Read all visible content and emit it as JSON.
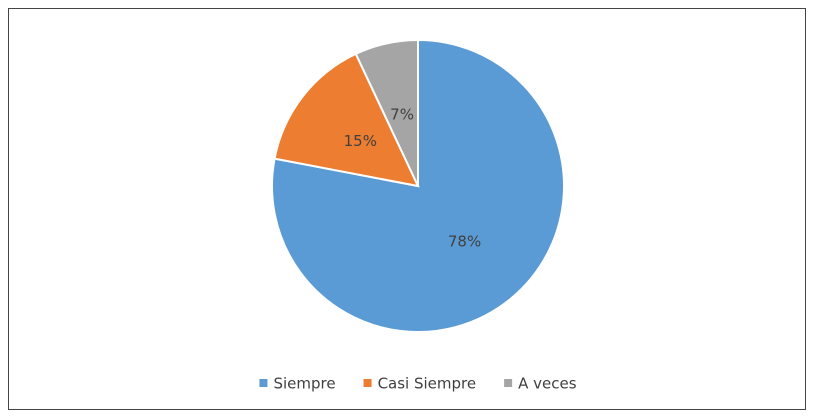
{
  "chart_data": {
    "type": "pie",
    "categories": [
      "Siempre",
      "Casi Siempre",
      "A veces"
    ],
    "values": [
      78,
      15,
      7
    ],
    "value_labels": [
      "78%",
      "15%",
      "7%"
    ],
    "colors": [
      "#5b9bd5",
      "#ed7d31",
      "#a5a5a5"
    ],
    "legend": "bottom"
  }
}
